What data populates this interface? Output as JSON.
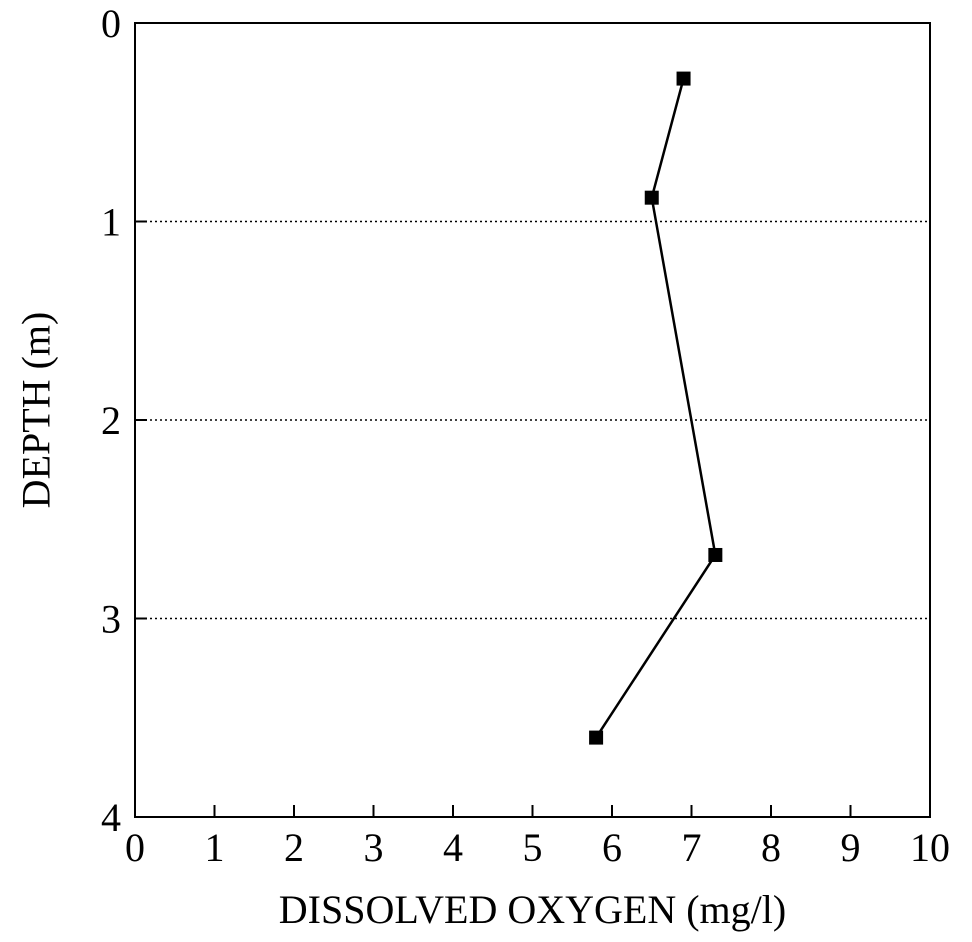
{
  "chart_data": {
    "type": "line",
    "title": "",
    "xlabel": "DISSOLVED OXYGEN (mg/l)",
    "ylabel": "DEPTH (m)",
    "xlim": [
      0,
      10
    ],
    "ylim": [
      0,
      4
    ],
    "y_inverted": true,
    "x_ticks": [
      "0",
      "1",
      "2",
      "3",
      "4",
      "5",
      "6",
      "7",
      "8",
      "9",
      "10"
    ],
    "y_ticks": [
      "0",
      "1",
      "2",
      "3",
      "4"
    ],
    "grid": "horizontal dotted lines at depths 1, 2, 3",
    "marker": "filled square",
    "series": [
      {
        "x": [
          6.9,
          6.5,
          7.3,
          5.8
        ],
        "y": [
          0.28,
          0.88,
          2.68,
          3.6
        ]
      }
    ]
  }
}
